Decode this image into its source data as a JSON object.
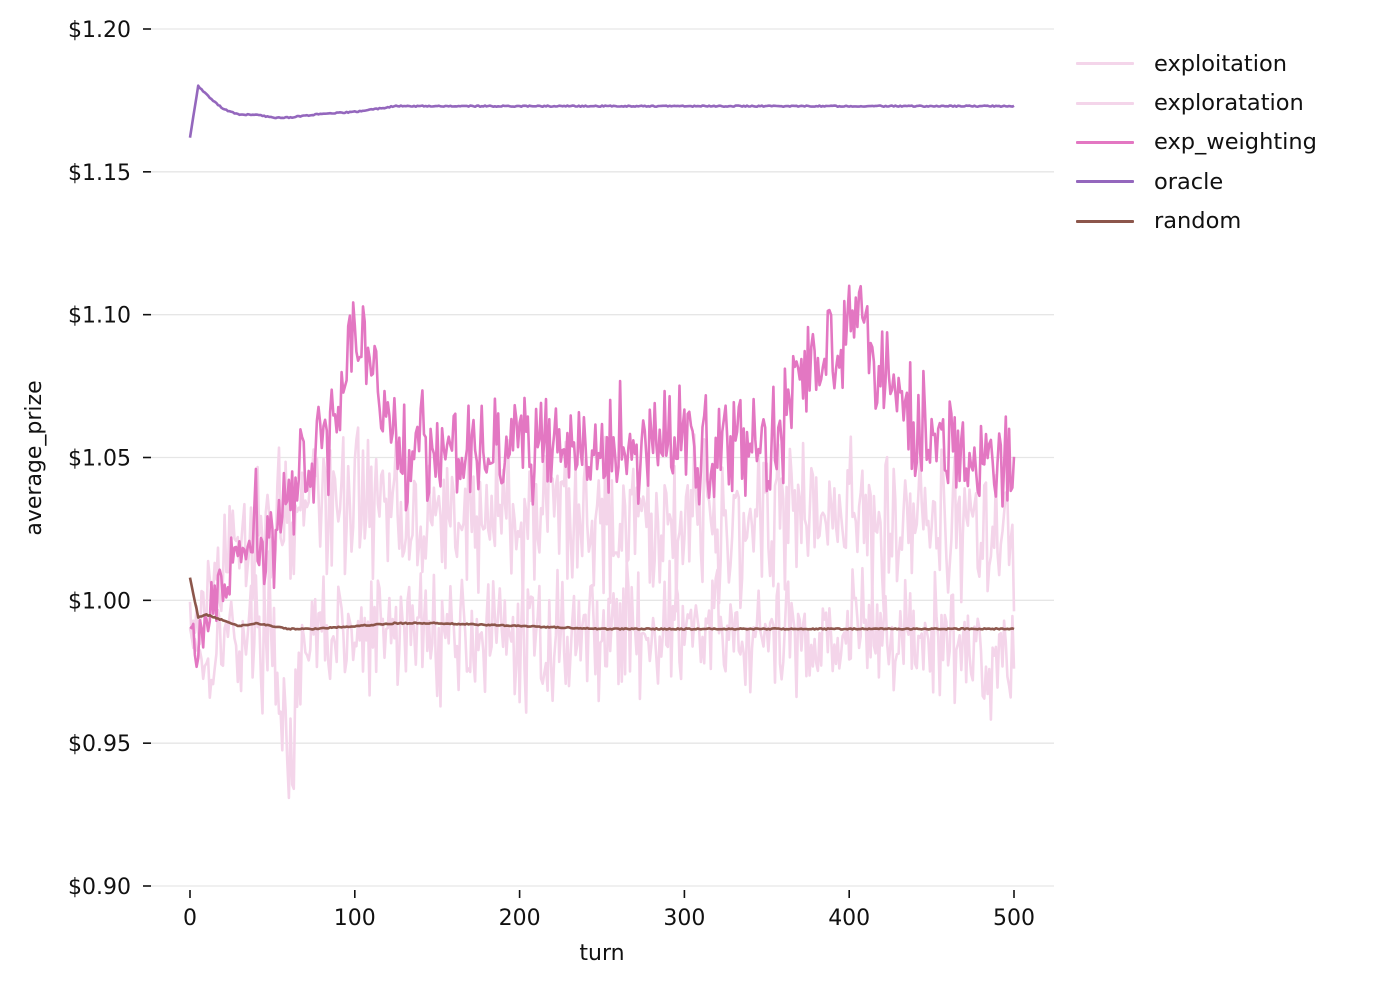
{
  "chart_data": {
    "type": "line",
    "title": "",
    "xlabel": "turn",
    "ylabel": "average_prize",
    "xlim": [
      -25,
      525
    ],
    "ylim": [
      0.9,
      1.2
    ],
    "x_ticks": [
      0,
      100,
      200,
      300,
      400,
      500
    ],
    "x_tick_labels": [
      "0",
      "100",
      "200",
      "300",
      "400",
      "500"
    ],
    "y_ticks": [
      0.9,
      0.95,
      1.0,
      1.05,
      1.1,
      1.15,
      1.2
    ],
    "y_tick_labels": [
      "$0.90",
      "$0.95",
      "$1.00",
      "$1.05",
      "$1.10",
      "$1.15",
      "$1.20"
    ],
    "grid": "horizontal",
    "legend_position": "outside-upper-right",
    "x": [
      0,
      5,
      10,
      20,
      30,
      40,
      50,
      60,
      75,
      100,
      125,
      150,
      200,
      250,
      300,
      350,
      400,
      450,
      500
    ],
    "series": [
      {
        "name": "exploitation",
        "color": "#f4d5ea",
        "description": "noisy; rises from ~$0.99 to fluctuate around ~$1.03",
        "values": [
          0.995,
          0.99,
          1.0,
          1.01,
          1.02,
          1.025,
          1.03,
          1.03,
          1.035,
          1.035,
          1.035,
          1.03,
          1.03,
          1.03,
          1.03,
          1.03,
          1.03,
          1.03,
          1.02
        ]
      },
      {
        "name": "exploratation",
        "color": "#f4d5ea",
        "description": "noisy; fluctuates around ~$0.99 (range ~$0.94–$1.02)",
        "values": [
          0.99,
          0.985,
          0.975,
          0.99,
          0.985,
          0.99,
          0.99,
          0.945,
          0.99,
          0.985,
          0.99,
          0.99,
          0.985,
          0.99,
          0.99,
          0.985,
          0.99,
          0.985,
          0.98
        ]
      },
      {
        "name": "exp_weighting",
        "color": "#e377c2",
        "description": "noisy; rises from ~$0.99 to fluctuate around ~$1.055 (peak ~$1.104 near turn 383)",
        "values": [
          0.993,
          0.98,
          0.995,
          1.005,
          1.015,
          1.02,
          1.025,
          1.035,
          1.045,
          1.095,
          1.055,
          1.055,
          1.055,
          1.05,
          1.055,
          1.055,
          1.104,
          1.055,
          1.043
        ]
      },
      {
        "name": "oracle",
        "color": "#9467bd",
        "description": "starts ~$1.162, spikes to ~$1.183, settles at ~$1.173",
        "values": [
          1.162,
          1.18,
          1.177,
          1.172,
          1.17,
          1.17,
          1.169,
          1.169,
          1.17,
          1.171,
          1.173,
          1.173,
          1.173,
          1.173,
          1.173,
          1.173,
          1.173,
          1.173,
          1.173
        ]
      },
      {
        "name": "random",
        "color": "#8c564b",
        "description": "starts ~$1.008, drops to ~$0.993, settles ~$0.990",
        "values": [
          1.008,
          0.994,
          0.995,
          0.993,
          0.991,
          0.992,
          0.991,
          0.99,
          0.99,
          0.991,
          0.992,
          0.992,
          0.991,
          0.99,
          0.99,
          0.99,
          0.99,
          0.99,
          0.99
        ]
      }
    ]
  },
  "legend": {
    "items": [
      {
        "label": "exploitation",
        "color": "#f4d5ea"
      },
      {
        "label": "exploratation",
        "color": "#f4d5ea"
      },
      {
        "label": "exp_weighting",
        "color": "#e377c2"
      },
      {
        "label": "oracle",
        "color": "#9467bd"
      },
      {
        "label": "random",
        "color": "#8c564b"
      }
    ]
  },
  "render": {
    "noise": {
      "exploitation": 0.022,
      "exploratation": 0.018,
      "exp_weighting": 0.016,
      "oracle": 0.0,
      "random": 0.0
    }
  }
}
